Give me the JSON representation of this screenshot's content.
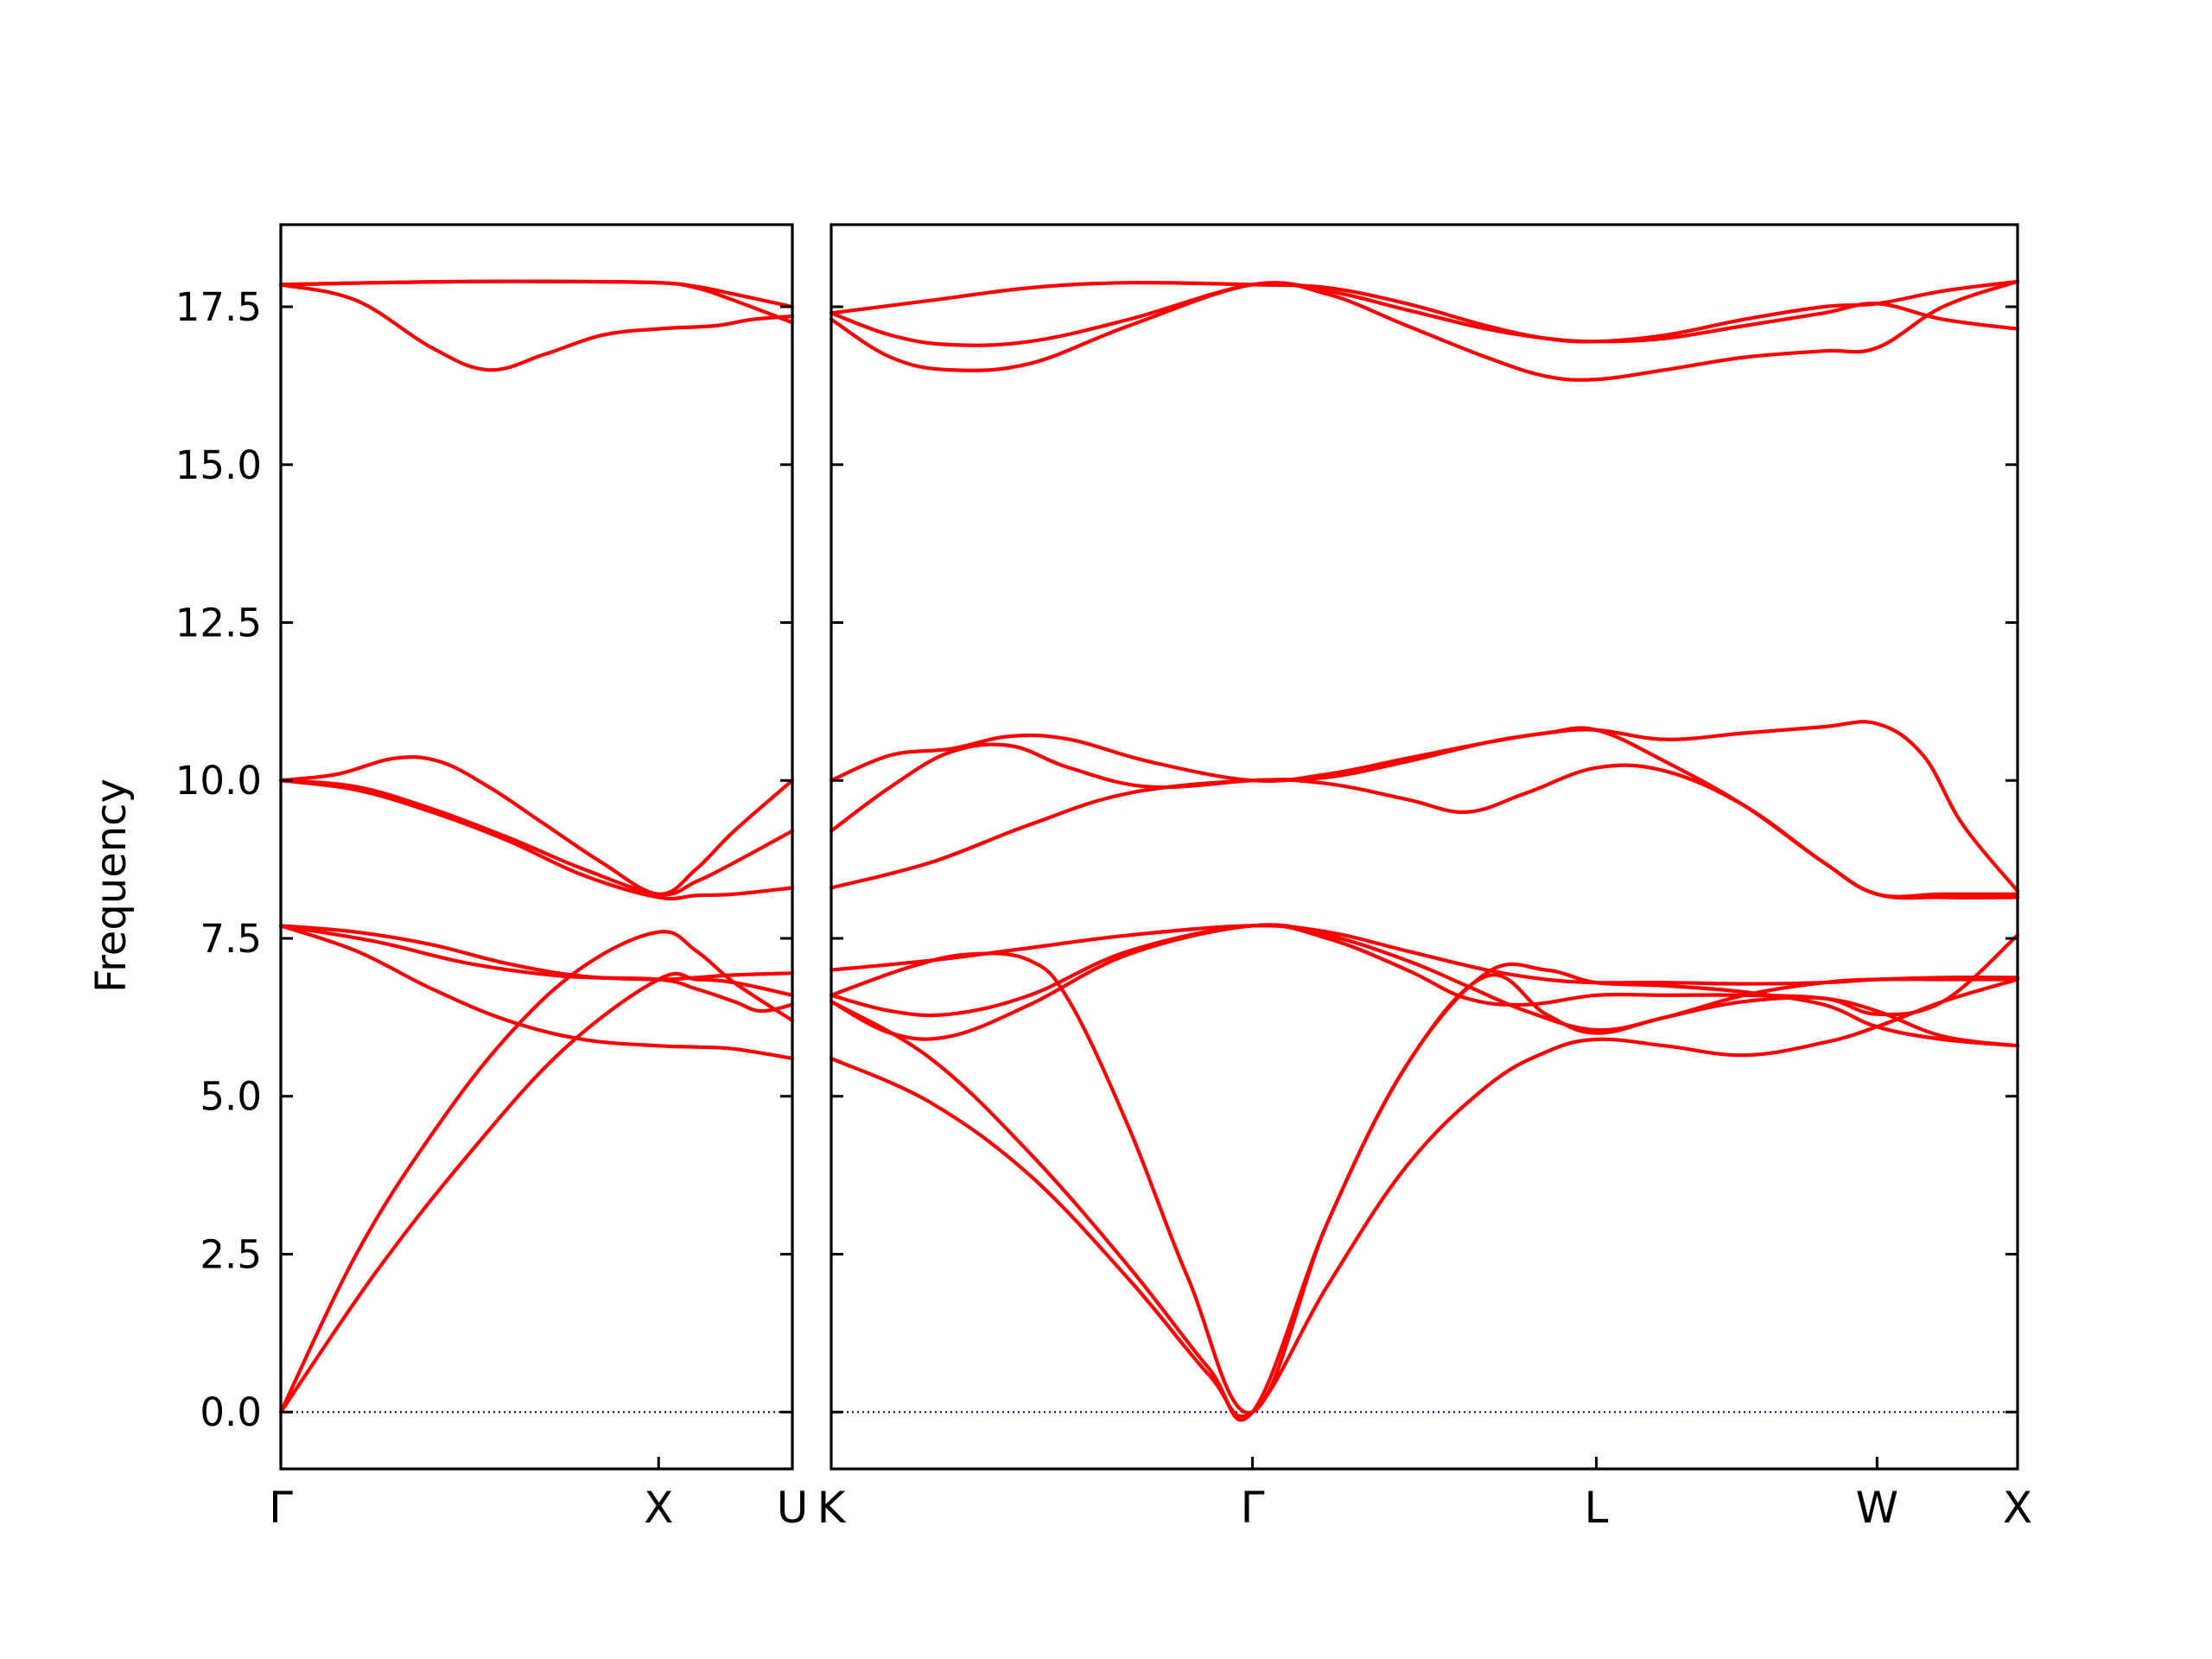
{
  "chart_data": {
    "type": "line",
    "title": "",
    "ylabel": "Frequency",
    "ylim": [
      -0.9,
      18.8
    ],
    "yticks": [
      "0.0",
      "2.5",
      "5.0",
      "7.5",
      "10.0",
      "12.5",
      "15.0",
      "17.5"
    ],
    "colors": {
      "band": "#ff0000",
      "zero_line": "#00008b"
    },
    "grid": false,
    "legend": "none",
    "panels": [
      {
        "name": "Γ-X-U",
        "symmetry_points": [
          {
            "label": "Γ",
            "x": 0.0
          },
          {
            "label": "X",
            "x": 1.0
          },
          {
            "label": "U",
            "x": 1.354
          }
        ],
        "xlim": [
          0.0,
          1.354
        ],
        "bands": [
          {
            "x": [
              0,
              0.2,
              0.4,
              0.6,
              0.8,
              1.0,
              1.1,
              1.2,
              1.354
            ],
            "y": [
              0.0,
              2.5,
              4.4,
              5.95,
              7.05,
              7.6,
              7.3,
              6.8,
              6.2
            ]
          },
          {
            "x": [
              0,
              0.25,
              0.5,
              0.75,
              1.0,
              1.1,
              1.2,
              1.354
            ],
            "y": [
              0.0,
              2.2,
              4.1,
              5.75,
              6.85,
              6.85,
              6.8,
              6.6
            ]
          },
          {
            "x": [
              0,
              0.2,
              0.4,
              0.6,
              0.8,
              1.0,
              1.1,
              1.2,
              1.354
            ],
            "y": [
              7.7,
              7.3,
              6.7,
              6.2,
              5.9,
              5.8,
              5.78,
              5.75,
              5.6
            ]
          },
          {
            "x": [
              0,
              0.25,
              0.5,
              0.75,
              1.0,
              1.1,
              1.2,
              1.27,
              1.354
            ],
            "y": [
              7.7,
              7.45,
              7.1,
              6.9,
              6.85,
              6.7,
              6.5,
              6.35,
              6.45
            ]
          },
          {
            "x": [
              0,
              0.2,
              0.4,
              0.6,
              0.8,
              1.0,
              1.1,
              1.2,
              1.354
            ],
            "y": [
              7.7,
              7.6,
              7.4,
              7.1,
              6.9,
              6.85,
              6.88,
              6.92,
              6.95
            ]
          },
          {
            "x": [
              0,
              0.2,
              0.4,
              0.6,
              0.8,
              1.0,
              1.1,
              1.2,
              1.354
            ],
            "y": [
              10.0,
              9.85,
              9.5,
              9.05,
              8.5,
              8.15,
              8.18,
              8.2,
              8.3
            ]
          },
          {
            "x": [
              0,
              0.2,
              0.4,
              0.6,
              0.8,
              1.0,
              1.1,
              1.2,
              1.354
            ],
            "y": [
              10.0,
              9.9,
              9.55,
              9.1,
              8.6,
              8.2,
              8.4,
              8.7,
              9.2
            ]
          },
          {
            "x": [
              0,
              0.15,
              0.3,
              0.42,
              0.55,
              0.7,
              0.85,
              1.0,
              1.1,
              1.2,
              1.354
            ],
            "y": [
              10.0,
              10.1,
              10.35,
              10.3,
              9.9,
              9.3,
              8.7,
              8.2,
              8.6,
              9.2,
              10.0
            ]
          },
          {
            "x": [
              0,
              0.2,
              0.4,
              0.55,
              0.7,
              0.85,
              1.0,
              1.15,
              1.25,
              1.354
            ],
            "y": [
              17.85,
              17.6,
              16.85,
              16.5,
              16.75,
              17.05,
              17.15,
              17.2,
              17.3,
              17.35
            ]
          },
          {
            "x": [
              0,
              0.25,
              0.5,
              0.75,
              1.0,
              1.1,
              1.2,
              1.354
            ],
            "y": [
              17.85,
              17.88,
              17.9,
              17.9,
              17.88,
              17.8,
              17.6,
              17.25
            ]
          },
          {
            "x": [
              0,
              0.25,
              0.5,
              0.75,
              1.0,
              1.1,
              1.2,
              1.354
            ],
            "y": [
              17.85,
              17.88,
              17.9,
              17.9,
              17.88,
              17.82,
              17.7,
              17.5
            ]
          }
        ]
      },
      {
        "name": "K-Γ-L-W-X",
        "symmetry_points": [
          {
            "label": "K",
            "x": 0.0
          },
          {
            "label": "Γ",
            "x": 1.061
          },
          {
            "label": "L",
            "x": 1.927
          },
          {
            "label": "W",
            "x": 2.634
          },
          {
            "label": "X",
            "x": 2.988
          }
        ],
        "xlim": [
          0.0,
          2.988
        ],
        "bands": [
          {
            "x": [
              0,
              0.25,
              0.5,
              0.75,
              0.95,
              1.061,
              1.25,
              1.45,
              1.65,
              1.8,
              1.927,
              2.1,
              2.3,
              2.5,
              2.634,
              2.8,
              2.988
            ],
            "y": [
              5.6,
              4.9,
              3.75,
              2.1,
              0.6,
              0.0,
              2.0,
              3.9,
              5.15,
              5.7,
              5.9,
              5.8,
              5.65,
              5.85,
              6.1,
              6.5,
              6.85
            ]
          },
          {
            "x": [
              0,
              0.25,
              0.5,
              0.75,
              0.95,
              1.061,
              1.25,
              1.45,
              1.65,
              1.8,
              1.927,
              2.1,
              2.3,
              2.5,
              2.634,
              2.8,
              2.988
            ],
            "y": [
              6.5,
              5.6,
              4.1,
              2.3,
              0.7,
              0.0,
              3.0,
              5.5,
              6.9,
              6.3,
              6.0,
              6.25,
              6.5,
              6.55,
              6.3,
              6.5,
              7.55
            ]
          },
          {
            "x": [
              0,
              0.2,
              0.35,
              0.5,
              0.6,
              0.75,
              0.9,
              1.061,
              1.25,
              1.45,
              1.65,
              1.8,
              1.927,
              2.1,
              2.3,
              2.5,
              2.634,
              2.8,
              2.988
            ],
            "y": [
              6.6,
              7.05,
              7.25,
              7.15,
              6.5,
              4.5,
              2.1,
              0.0,
              3.0,
              5.5,
              6.95,
              7.0,
              6.8,
              6.75,
              6.65,
              6.45,
              6.1,
              5.9,
              5.8
            ]
          },
          {
            "x": [
              0,
              0.15,
              0.3,
              0.5,
              0.75,
              1.061,
              1.25,
              1.45,
              1.6,
              1.75,
              1.927,
              2.1,
              2.3,
              2.5,
              2.634,
              2.8,
              2.988
            ],
            "y": [
              6.6,
              6.35,
              6.3,
              6.6,
              7.3,
              7.7,
              7.5,
              7.0,
              6.55,
              6.45,
              6.6,
              6.6,
              6.6,
              6.55,
              6.35,
              5.95,
              5.8
            ]
          },
          {
            "x": [
              0,
              0.15,
              0.3,
              0.5,
              0.75,
              1.061,
              1.25,
              1.45,
              1.6,
              1.75,
              1.927,
              2.1,
              2.3,
              2.5,
              2.634,
              2.8,
              2.988
            ],
            "y": [
              6.5,
              6.0,
              5.95,
              6.45,
              7.25,
              7.7,
              7.55,
              7.15,
              6.75,
              6.35,
              6.05,
              6.25,
              6.6,
              6.8,
              6.85,
              6.85,
              6.85
            ]
          },
          {
            "x": [
              0,
              0.25,
              0.5,
              0.75,
              1.061,
              1.25,
              1.45,
              1.65,
              1.8,
              1.927,
              2.1,
              2.3,
              2.5,
              2.634,
              2.8,
              2.988
            ],
            "y": [
              7.0,
              7.15,
              7.35,
              7.55,
              7.7,
              7.6,
              7.3,
              7.0,
              6.85,
              6.8,
              6.8,
              6.78,
              6.8,
              6.85,
              6.88,
              6.88
            ]
          },
          {
            "x": [
              0,
              0.25,
              0.5,
              0.75,
              1.061,
              1.25,
              1.45,
              1.6,
              1.75,
              1.927,
              2.1,
              2.3,
              2.5,
              2.634,
              2.8,
              2.988
            ],
            "y": [
              8.3,
              8.7,
              9.3,
              9.8,
              10.0,
              9.95,
              9.7,
              9.5,
              9.8,
              10.2,
              10.15,
              9.6,
              8.7,
              8.2,
              8.15,
              8.15
            ]
          },
          {
            "x": [
              0,
              0.15,
              0.3,
              0.45,
              0.6,
              0.8,
              1.061,
              1.25,
              1.45,
              1.65,
              1.8,
              1.927,
              2.1,
              2.3,
              2.5,
              2.634,
              2.8,
              2.988
            ],
            "y": [
              9.2,
              9.9,
              10.45,
              10.55,
              10.2,
              9.9,
              10.0,
              10.05,
              10.3,
              10.6,
              10.75,
              10.8,
              10.3,
              9.6,
              8.7,
              8.2,
              8.2,
              8.2
            ]
          },
          {
            "x": [
              0,
              0.15,
              0.3,
              0.45,
              0.6,
              0.8,
              1.061,
              1.25,
              1.45,
              1.65,
              1.8,
              1.927,
              2.1,
              2.3,
              2.5,
              2.634,
              2.75,
              2.85,
              2.988
            ],
            "y": [
              10.0,
              10.4,
              10.5,
              10.7,
              10.65,
              10.3,
              10.0,
              10.1,
              10.35,
              10.6,
              10.75,
              10.8,
              10.65,
              10.75,
              10.85,
              10.9,
              10.4,
              9.3,
              8.25
            ]
          },
          {
            "x": [
              0,
              0.15,
              0.3,
              0.5,
              0.75,
              1.061,
              1.25,
              1.45,
              1.65,
              1.8,
              1.927,
              2.1,
              2.3,
              2.5,
              2.634,
              2.8,
              2.988
            ],
            "y": [
              17.3,
              16.7,
              16.5,
              16.6,
              17.2,
              17.85,
              17.7,
              17.2,
              16.7,
              16.4,
              16.35,
              16.5,
              16.7,
              16.8,
              16.85,
              17.5,
              17.9
            ]
          },
          {
            "x": [
              0,
              0.15,
              0.3,
              0.5,
              0.75,
              1.061,
              1.25,
              1.45,
              1.65,
              1.8,
              1.927,
              2.1,
              2.3,
              2.5,
              2.634,
              2.8,
              2.988
            ],
            "y": [
              17.4,
              17.05,
              16.9,
              16.95,
              17.3,
              17.85,
              17.75,
              17.45,
              17.15,
              17.0,
              16.95,
              17.0,
              17.2,
              17.4,
              17.55,
              17.3,
              17.15
            ]
          },
          {
            "x": [
              0,
              0.25,
              0.5,
              0.75,
              1.061,
              1.25,
              1.45,
              1.65,
              1.8,
              1.927,
              2.1,
              2.3,
              2.5,
              2.634,
              2.8,
              2.988
            ],
            "y": [
              17.4,
              17.6,
              17.8,
              17.88,
              17.85,
              17.8,
              17.55,
              17.2,
              17.0,
              16.95,
              17.05,
              17.3,
              17.5,
              17.55,
              17.75,
              17.9
            ]
          }
        ]
      }
    ]
  }
}
